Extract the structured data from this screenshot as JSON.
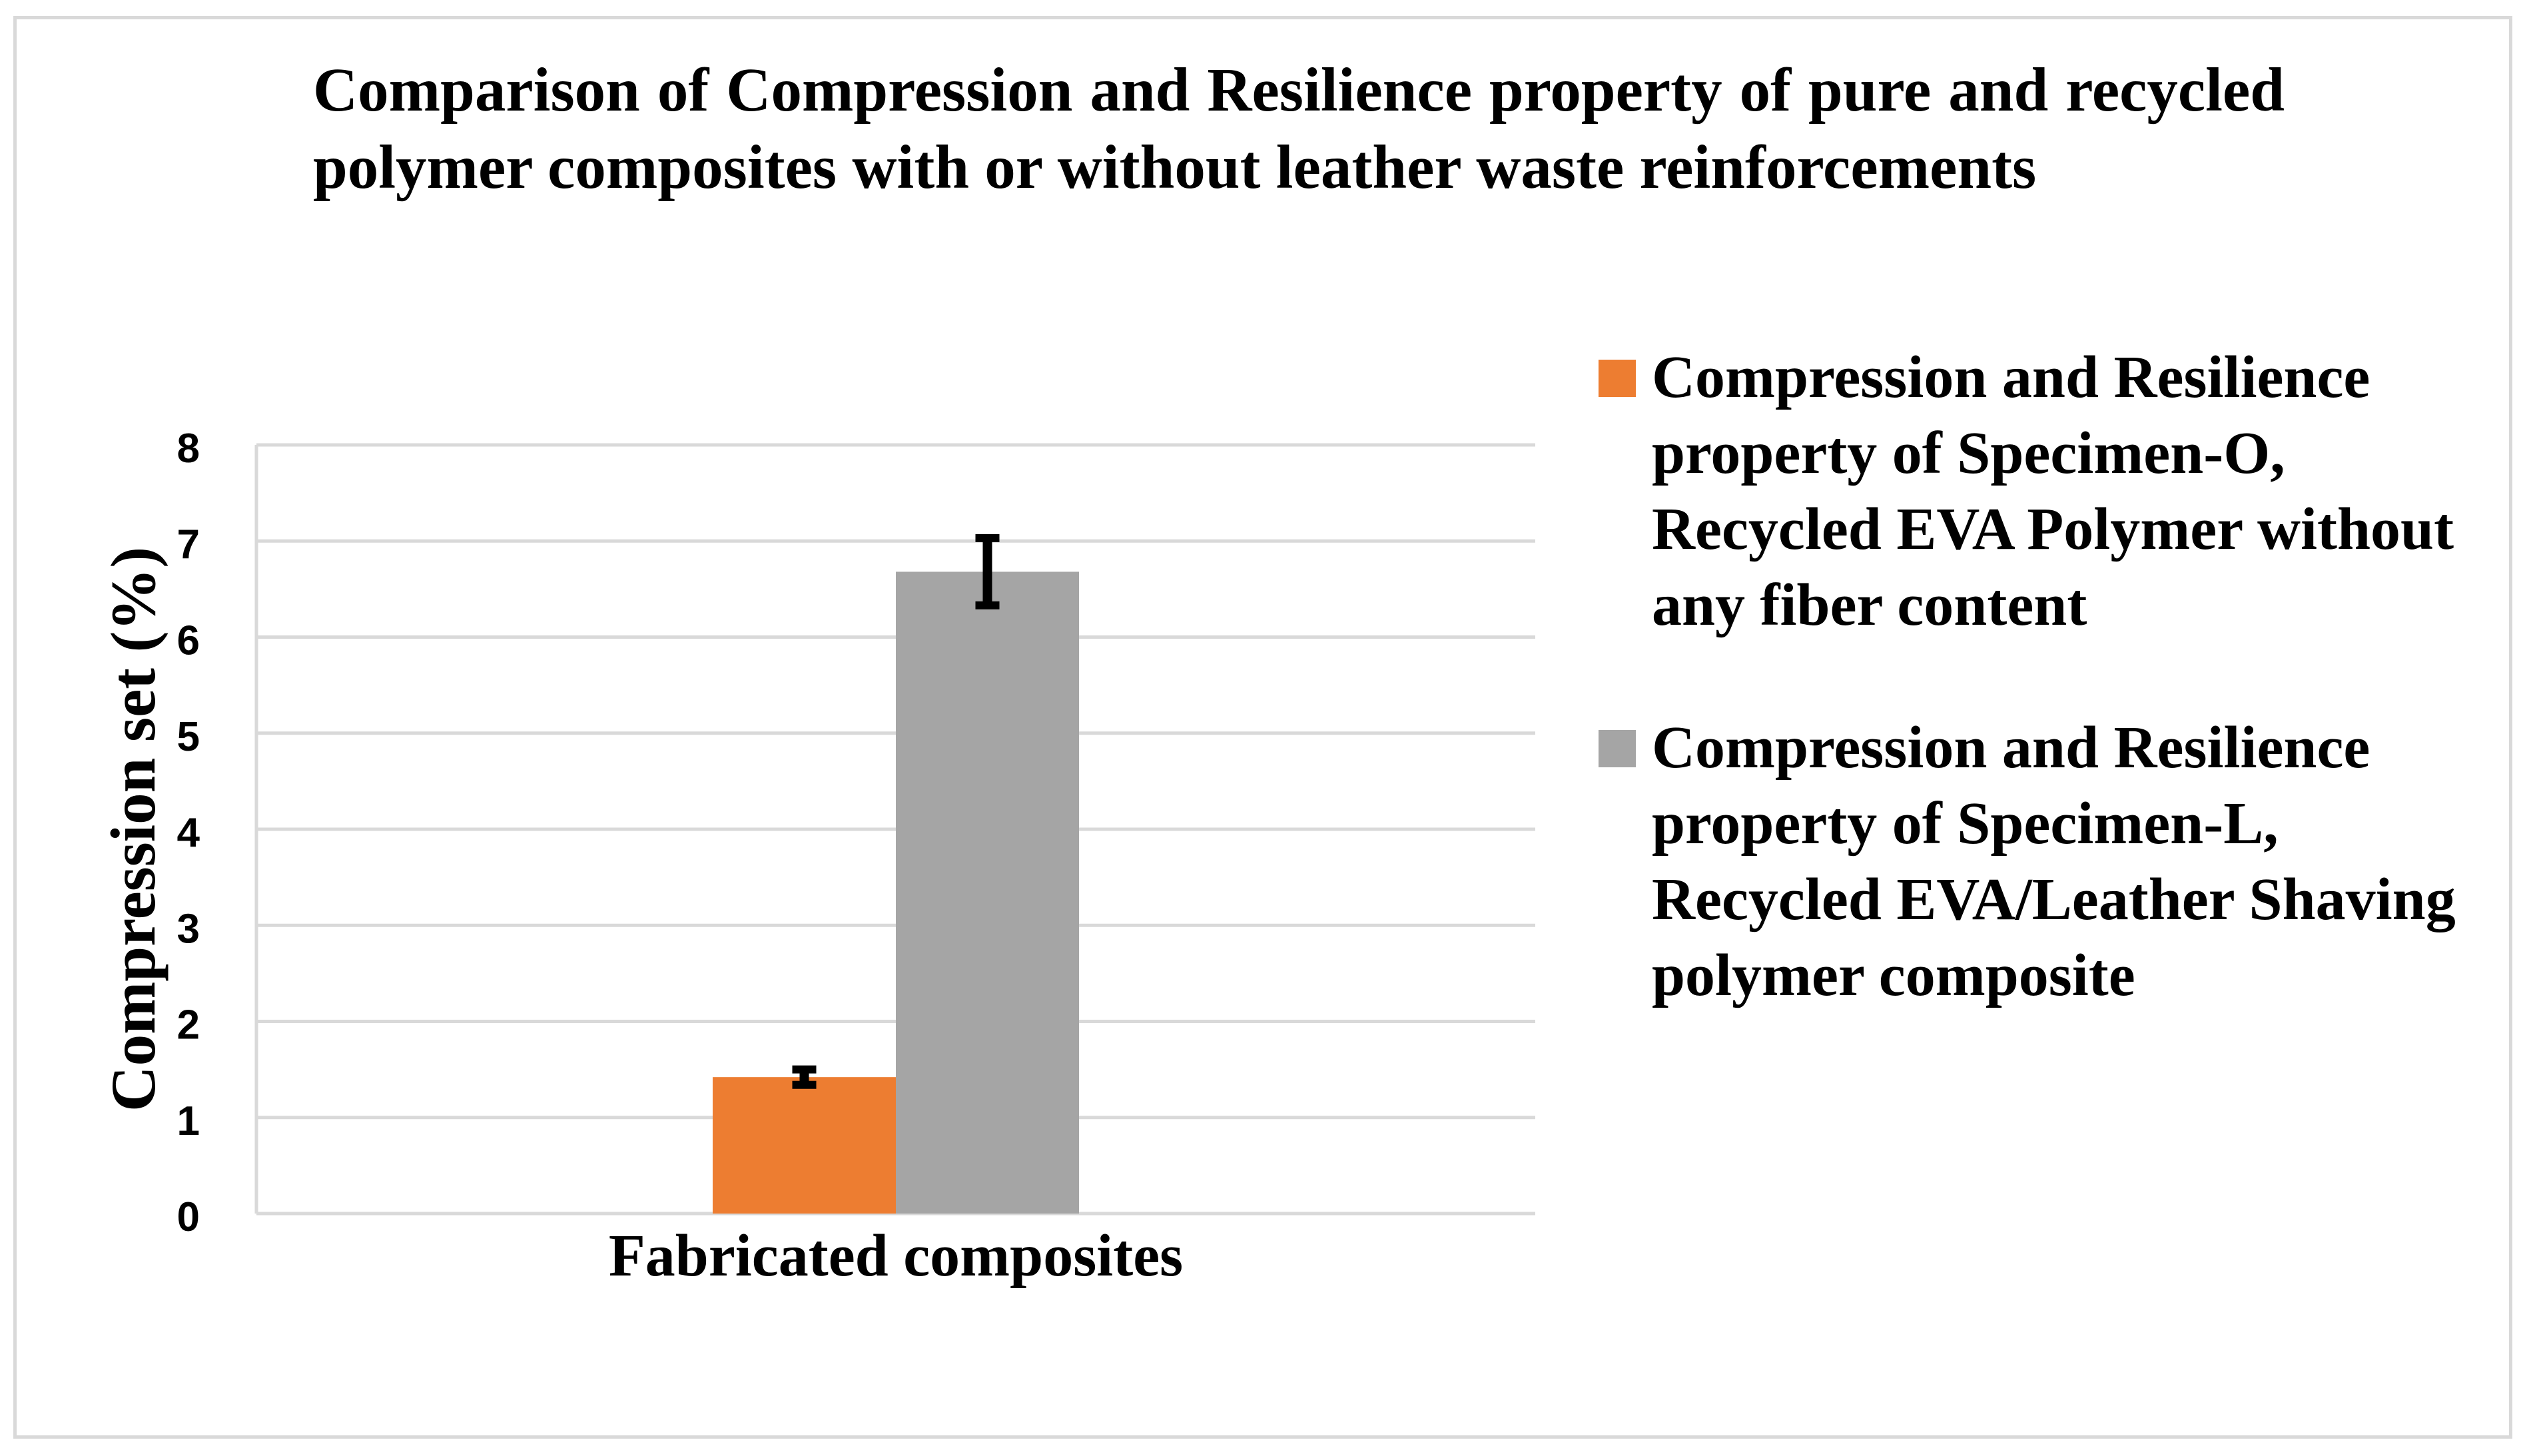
{
  "chart_data": {
    "type": "bar",
    "title": "Comparison of Compression and Resilience property of pure and recycled polymer composites with or without leather waste reinforcements",
    "xlabel": "",
    "ylabel": "Compression set (%)",
    "categories": [
      "Fabricated composites"
    ],
    "ylim": [
      0,
      8
    ],
    "yticks": [
      0,
      1,
      2,
      3,
      4,
      5,
      6,
      7,
      8
    ],
    "grid": true,
    "legend_position": "right",
    "series": [
      {
        "name": "Compression and Resilience property of Specimen-O, Recycled EVA Polymer without any fiber content",
        "values": [
          1.42
        ],
        "error": [
          0.08
        ],
        "color": "#ED7D31"
      },
      {
        "name": "Compression and Resilience property of Specimen-L, Recycled EVA/Leather Shaving polymer composite",
        "values": [
          6.68
        ],
        "error": [
          0.35
        ],
        "color": "#A5A5A5"
      }
    ]
  }
}
